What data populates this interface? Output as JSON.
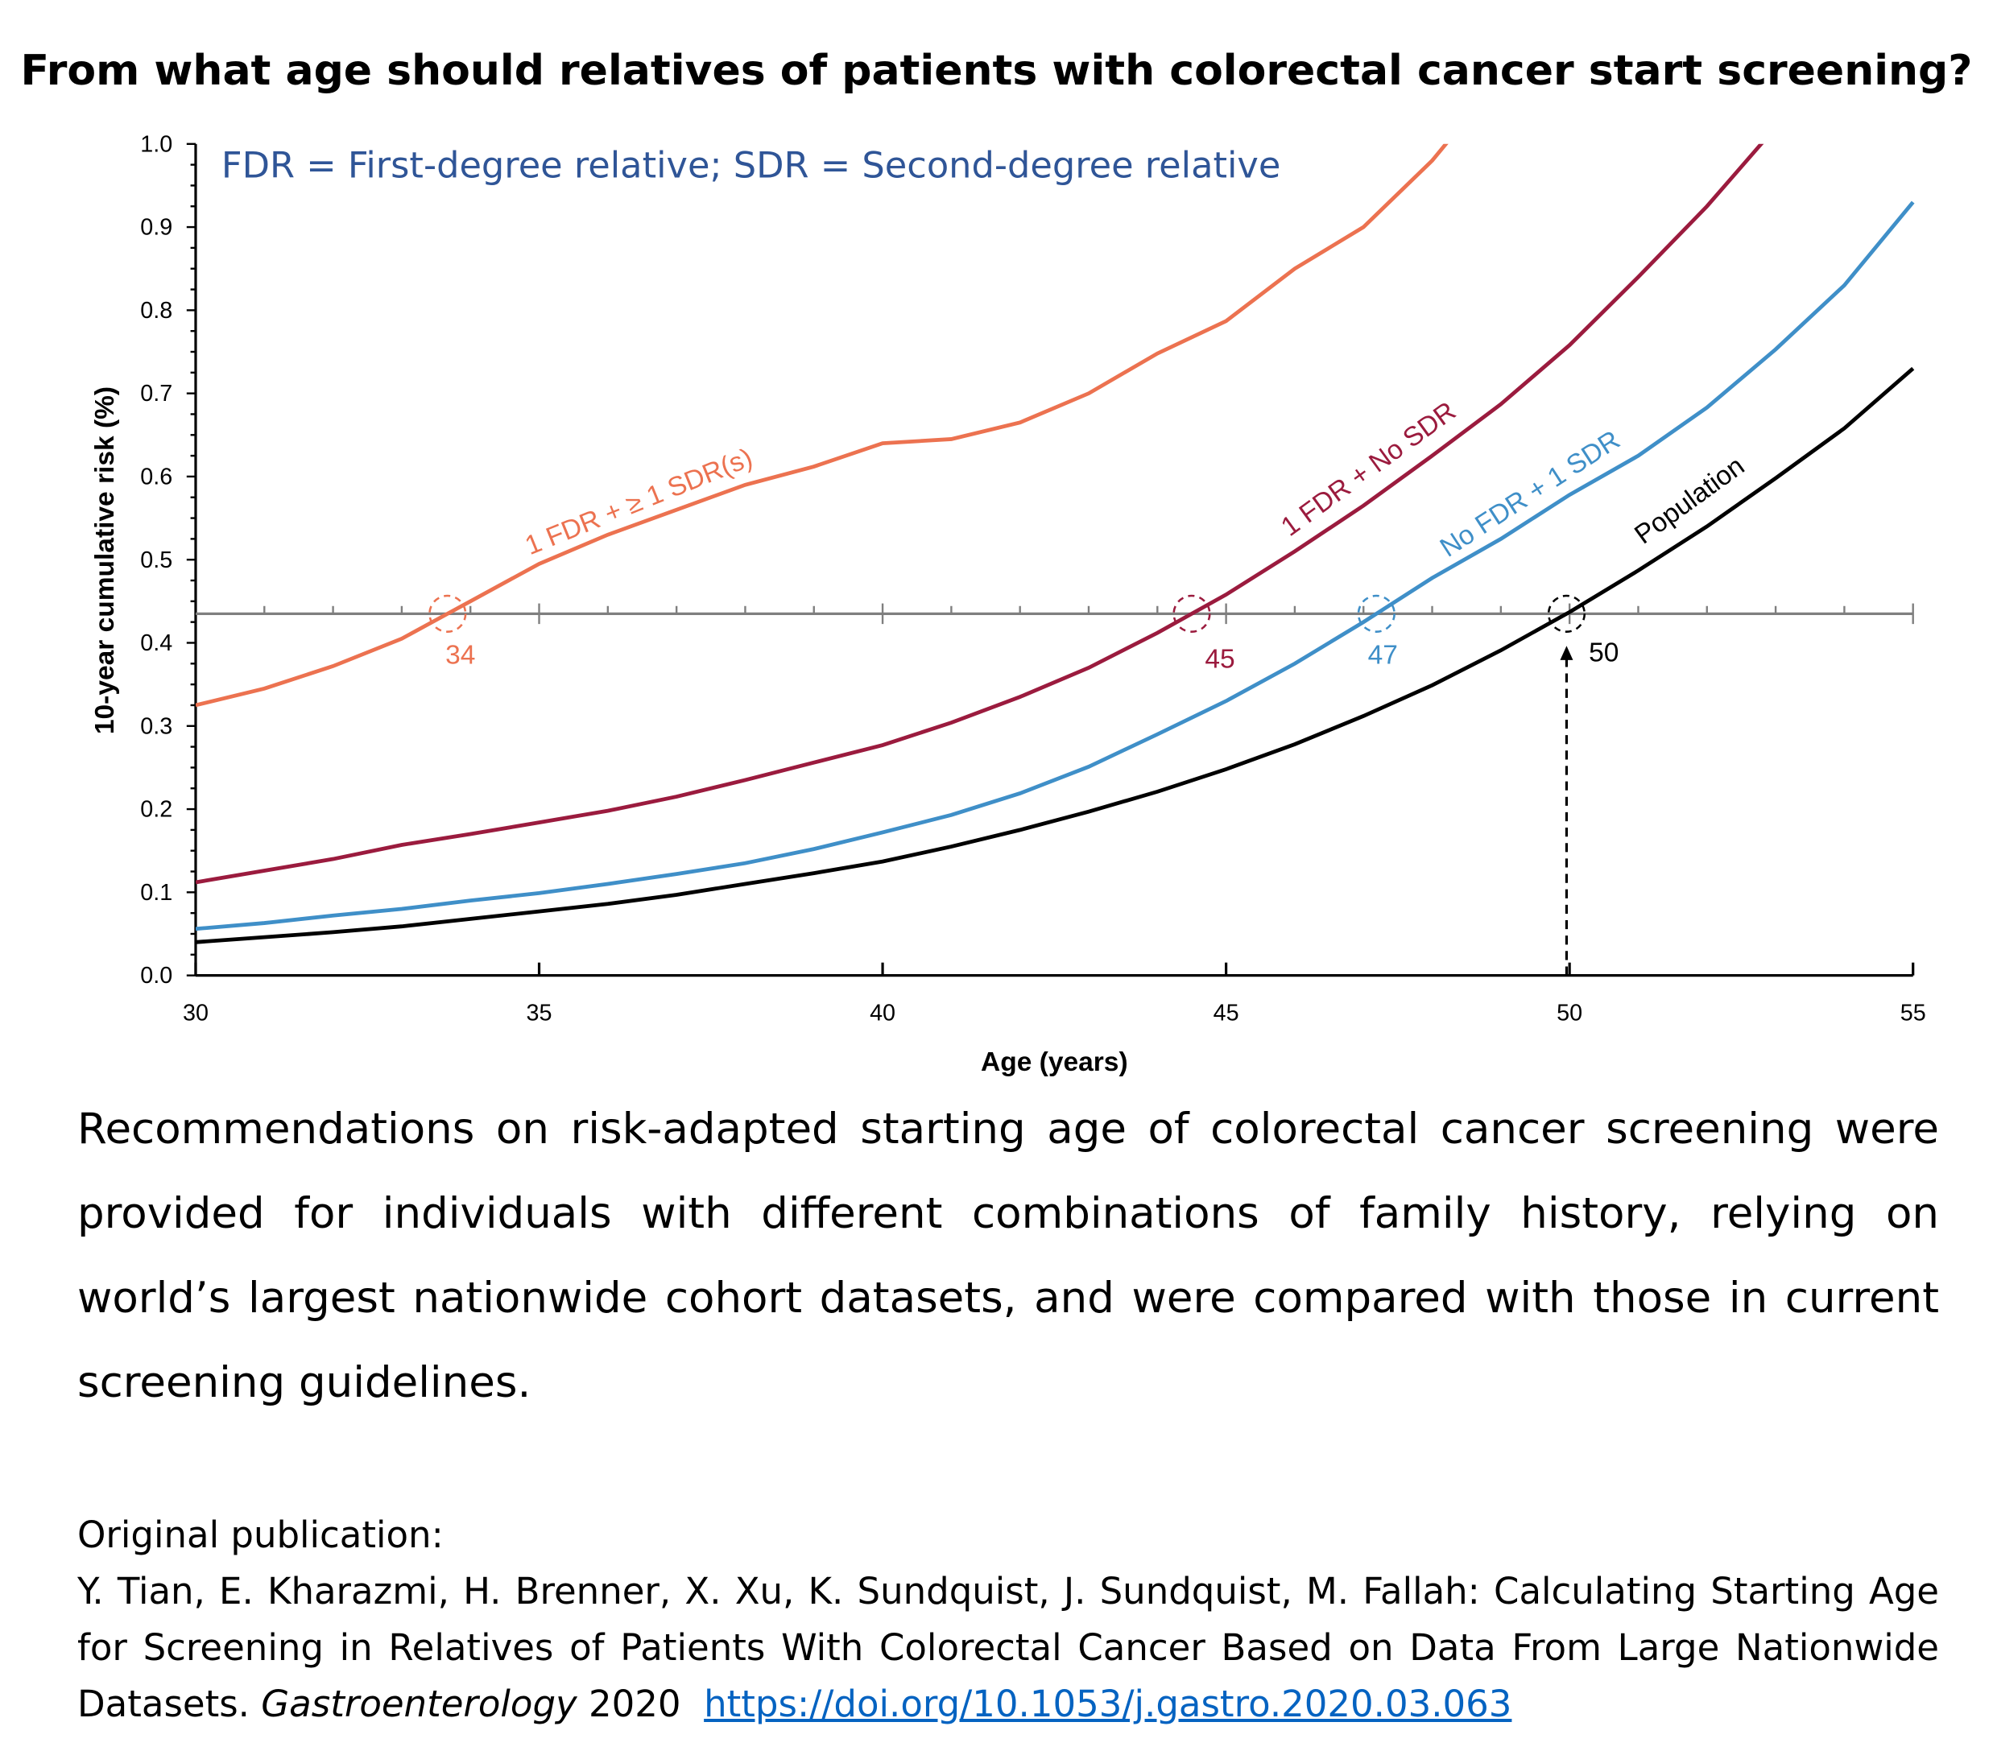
{
  "title": "From what age should relatives of patients with colorectal cancer start screening?",
  "chart_data": {
    "type": "line",
    "note": "FDR = First-degree relative; SDR = Second-degree relative",
    "xlabel": "Age (years)",
    "ylabel": "10-year cumulative risk (%)",
    "xlim": [
      30,
      55
    ],
    "ylim": [
      0.0,
      1.0
    ],
    "xticks": [
      "30",
      "35",
      "40",
      "45",
      "50",
      "55"
    ],
    "yticks": [
      "0.0",
      "0.1",
      "0.2",
      "0.3",
      "0.4",
      "0.5",
      "0.6",
      "0.7",
      "0.8",
      "0.9",
      "1.0"
    ],
    "grid": false,
    "threshold": 0.435,
    "series": [
      {
        "name": "1 FDR + ≥ 1 SDR(s)",
        "color": "#ec7250",
        "x": [
          30,
          31,
          32,
          33,
          34,
          35,
          36,
          37,
          38,
          39,
          40,
          41,
          42,
          43,
          44,
          45,
          46,
          47,
          48,
          49
        ],
        "y": [
          0.325,
          0.345,
          0.372,
          0.405,
          0.45,
          0.495,
          0.53,
          0.56,
          0.59,
          0.612,
          0.64,
          0.645,
          0.665,
          0.7,
          0.748,
          0.787,
          0.85,
          0.9,
          0.98,
          1.08
        ],
        "start_age": "34"
      },
      {
        "name": "1 FDR + No SDR",
        "color": "#9b1b3e",
        "x": [
          30,
          31,
          32,
          33,
          34,
          35,
          36,
          37,
          38,
          39,
          40,
          41,
          42,
          43,
          44,
          45,
          46,
          47,
          48,
          49,
          50,
          51,
          52,
          53
        ],
        "y": [
          0.112,
          0.126,
          0.14,
          0.157,
          0.17,
          0.184,
          0.198,
          0.215,
          0.235,
          0.256,
          0.277,
          0.304,
          0.335,
          0.37,
          0.412,
          0.458,
          0.51,
          0.565,
          0.625,
          0.687,
          0.758,
          0.84,
          0.925,
          1.02
        ],
        "start_age": "45"
      },
      {
        "name": "No FDR + 1 SDR",
        "color": "#3f8fc8",
        "x": [
          30,
          31,
          32,
          33,
          34,
          35,
          36,
          37,
          38,
          39,
          40,
          41,
          42,
          43,
          44,
          45,
          46,
          47,
          48,
          49,
          50,
          51,
          52,
          53,
          54,
          55
        ],
        "y": [
          0.056,
          0.063,
          0.072,
          0.08,
          0.09,
          0.099,
          0.11,
          0.122,
          0.135,
          0.152,
          0.172,
          0.193,
          0.219,
          0.251,
          0.29,
          0.33,
          0.375,
          0.425,
          0.478,
          0.525,
          0.578,
          0.625,
          0.683,
          0.753,
          0.83,
          0.93
        ],
        "start_age": "47"
      },
      {
        "name": "Population",
        "color": "#000000",
        "x": [
          30,
          31,
          32,
          33,
          34,
          35,
          36,
          37,
          38,
          39,
          40,
          41,
          42,
          43,
          44,
          45,
          46,
          47,
          48,
          49,
          50,
          51,
          52,
          53,
          54,
          55
        ],
        "y": [
          0.04,
          0.046,
          0.052,
          0.059,
          0.068,
          0.077,
          0.086,
          0.097,
          0.11,
          0.123,
          0.137,
          0.155,
          0.175,
          0.197,
          0.221,
          0.248,
          0.278,
          0.312,
          0.349,
          0.391,
          0.437,
          0.487,
          0.54,
          0.598,
          0.658,
          0.73
        ],
        "start_age": "50"
      }
    ],
    "note_color": "#2f5597"
  },
  "summary": "Recommendations on risk-adapted starting age of colorectal cancer screening were provided for individuals with different combinations of family history, relying on world’s largest nationwide cohort datasets, and were compared with those in current screening guidelines.",
  "publication": {
    "heading": "Original publication:",
    "citation": "Y. Tian, E. Kharazmi, H. Brenner, X. Xu, K. Sundquist, J. Sundquist, M. Fallah: Calculating Starting Age for Screening in Relatives of Patients With Colorectal Cancer Based on Data From Large Nationwide Datasets.",
    "journal": "Gastroenterology",
    "year": "2020",
    "doi": "https://doi.org/10.1053/j.gastro.2020.03.063"
  }
}
